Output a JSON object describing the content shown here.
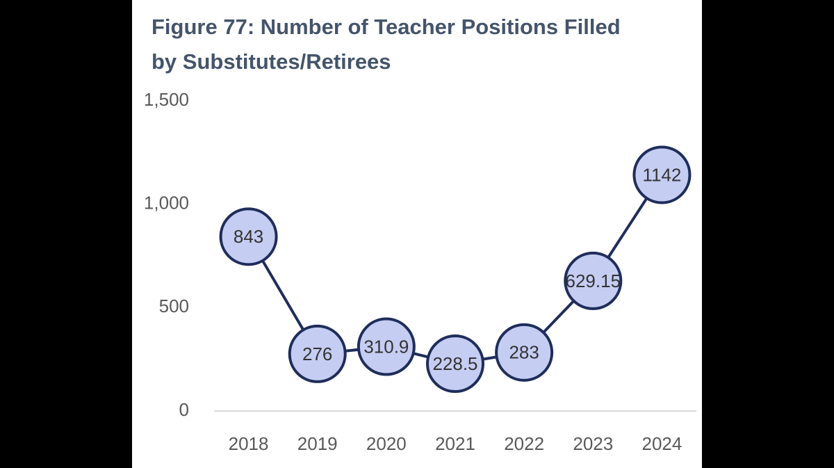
{
  "chart_data": {
    "type": "line",
    "title": "Figure 77: Number of Teacher Positions Filled by Substitutes/Retirees",
    "categories": [
      "2018",
      "2019",
      "2020",
      "2021",
      "2022",
      "2023",
      "2024"
    ],
    "values": [
      843,
      276,
      310.9,
      228.5,
      283,
      629.15,
      1142
    ],
    "color": "#1f2d5a",
    "marker_color": "#c5cdf3",
    "ylim": [
      0,
      1500
    ],
    "yticks": [
      0,
      500,
      {
        "value": 1000,
        "label": "1,000"
      },
      {
        "value": 1500,
        "label": "1,500"
      }
    ],
    "grid": false
  }
}
